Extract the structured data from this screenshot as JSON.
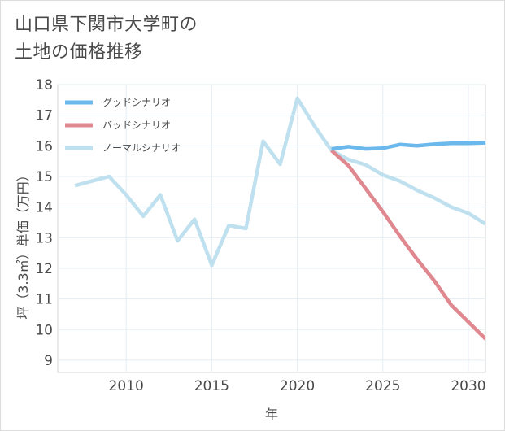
{
  "title": "山口県下関市大学町の\n土地の価格推移",
  "chart_data": {
    "type": "line",
    "xlabel": "年",
    "ylabel": "坪（3.3㎡）単価（万円）",
    "xlim": [
      2006,
      2031
    ],
    "ylim": [
      8.6,
      18
    ],
    "x_ticks": [
      2010,
      2015,
      2020,
      2025,
      2030
    ],
    "y_ticks": [
      9,
      10,
      11,
      12,
      13,
      14,
      15,
      16,
      17,
      18
    ],
    "grid": true,
    "legend_position": "top-left",
    "series": [
      {
        "name": "グッドシナリオ",
        "color": "#6bb8ec",
        "x": [
          2022,
          2023,
          2024,
          2025,
          2026,
          2027,
          2028,
          2029,
          2030,
          2031
        ],
        "y": [
          15.9,
          15.97,
          15.9,
          15.92,
          16.04,
          16.0,
          16.05,
          16.08,
          16.08,
          16.1
        ]
      },
      {
        "name": "バッドシナリオ",
        "color": "#e0888f",
        "x": [
          2022,
          2023,
          2024,
          2025,
          2026,
          2027,
          2028,
          2029,
          2030,
          2031
        ],
        "y": [
          15.85,
          15.35,
          14.6,
          13.85,
          13.05,
          12.3,
          11.6,
          10.8,
          10.25,
          9.7
        ]
      },
      {
        "name": "ノーマルシナリオ",
        "color": "#bfe0ee",
        "x": [
          2007,
          2008,
          2009,
          2010,
          2011,
          2012,
          2013,
          2014,
          2015,
          2016,
          2017,
          2018,
          2019,
          2020,
          2021,
          2022,
          2023,
          2024,
          2025,
          2026,
          2027,
          2028,
          2029,
          2030,
          2031
        ],
        "y": [
          14.7,
          14.85,
          15.0,
          14.4,
          13.7,
          14.4,
          12.9,
          13.6,
          12.1,
          13.4,
          13.3,
          16.15,
          15.4,
          17.55,
          16.65,
          15.85,
          15.55,
          15.38,
          15.05,
          14.85,
          14.55,
          14.3,
          14.0,
          13.8,
          13.45
        ]
      }
    ]
  }
}
